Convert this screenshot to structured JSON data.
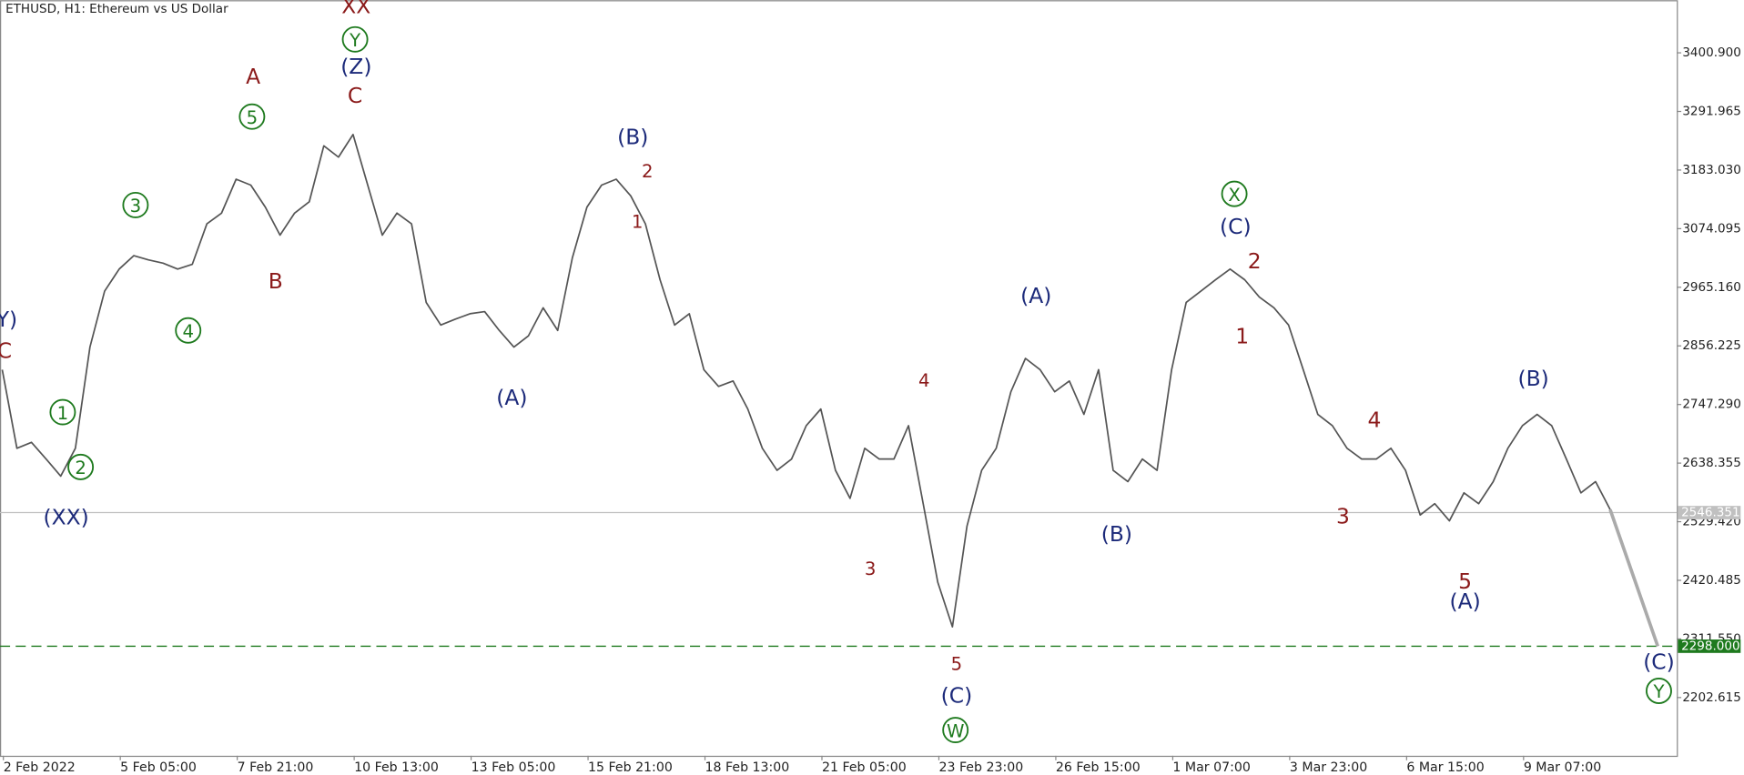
{
  "chart_data": {
    "type": "line",
    "title": "ETHUSD, H1:  Ethereum vs US Dollar",
    "color": "#555555",
    "ylim": [
      2094.4,
      3498.7
    ],
    "yticks": [
      {
        "value": 3400.9,
        "label": "3400.900"
      },
      {
        "value": 3291.965,
        "label": "3291.965"
      },
      {
        "value": 3183.03,
        "label": "3183.030"
      },
      {
        "value": 3074.095,
        "label": "3074.095"
      },
      {
        "value": 2965.16,
        "label": "2965.160"
      },
      {
        "value": 2856.225,
        "label": "2856.225"
      },
      {
        "value": 2747.29,
        "label": "2747.290"
      },
      {
        "value": 2638.355,
        "label": "2638.355"
      },
      {
        "value": 2529.42,
        "label": "2529.420"
      },
      {
        "value": 2420.485,
        "label": "2420.485"
      },
      {
        "value": 2311.55,
        "label": "2311.550"
      },
      {
        "value": 2202.615,
        "label": "2202.615"
      }
    ],
    "xticks": [
      "2 Feb 2022",
      "5 Feb 05:00",
      "7 Feb 21:00",
      "10 Feb 13:00",
      "13 Feb 05:00",
      "15 Feb 21:00",
      "18 Feb 13:00",
      "21 Feb 05:00",
      "23 Feb 23:00",
      "26 Feb 15:00",
      "1 Mar 07:00",
      "3 Mar 23:00",
      "6 Mar 15:00",
      "9 Mar 07:00"
    ],
    "values": [
      2812,
      2666,
      2677,
      2646,
      2614,
      2666,
      2854,
      2958,
      2999,
      3024,
      3016,
      3010,
      2999,
      3008,
      3083,
      3103,
      3166,
      3155,
      3114,
      3062,
      3103,
      3124,
      3228,
      3207,
      3249,
      3155,
      3062,
      3103,
      3083,
      2937,
      2895,
      2906,
      2916,
      2920,
      2885,
      2854,
      2875,
      2927,
      2885,
      3020,
      3114,
      3155,
      3166,
      3135,
      3083,
      2979,
      2895,
      2916,
      2812,
      2781,
      2791,
      2739,
      2666,
      2625,
      2646,
      2708,
      2739,
      2625,
      2573,
      2666,
      2646,
      2646,
      2708,
      2563,
      2417,
      2334,
      2521,
      2625,
      2666,
      2771,
      2833,
      2812,
      2771,
      2791,
      2729,
      2812,
      2625,
      2604,
      2646,
      2625,
      2812,
      2937,
      2958,
      2979,
      2999,
      2979,
      2947,
      2927,
      2895,
      2812,
      2729,
      2708,
      2666,
      2646,
      2646,
      2666,
      2625,
      2542,
      2563,
      2531,
      2583,
      2563,
      2604,
      2666,
      2708,
      2729,
      2708,
      2646,
      2583,
      2604,
      2552
    ],
    "current_price": {
      "value": 2546.351,
      "label": "2546.351",
      "color": "#c0c0c0"
    },
    "target": {
      "value": 2298.0,
      "label": "2298.000",
      "color": "#1e7a1e"
    },
    "annotations": [
      {
        "text": "XX",
        "color": "#8b1a1a",
        "circled": false
      },
      {
        "text": "Y",
        "color": "#1e7a1e",
        "circled": true
      },
      {
        "text": "(Z)",
        "color": "#1c2a7a",
        "circled": false
      },
      {
        "text": "C",
        "color": "#8b1a1a",
        "circled": false
      },
      {
        "text": "A",
        "color": "#8b1a1a",
        "circled": false
      },
      {
        "text": "5",
        "color": "#1e7a1e",
        "circled": true
      },
      {
        "text": "3",
        "color": "#1e7a1e",
        "circled": true
      },
      {
        "text": "4",
        "color": "#1e7a1e",
        "circled": true
      },
      {
        "text": "B",
        "color": "#8b1a1a",
        "circled": false
      },
      {
        "text": "1",
        "color": "#1e7a1e",
        "circled": true
      },
      {
        "text": "2",
        "color": "#1e7a1e",
        "circled": true
      },
      {
        "text": "(XX)",
        "color": "#1c2a7a",
        "circled": false
      },
      {
        "text": "Y)",
        "color": "#1c2a7a",
        "circled": false
      },
      {
        "text": "C",
        "color": "#8b1a1a",
        "circled": false
      },
      {
        "text": "(B)",
        "color": "#1c2a7a",
        "circled": false
      },
      {
        "text": "2",
        "color": "#8b1a1a",
        "circled": false
      },
      {
        "text": "1",
        "color": "#8b1a1a",
        "circled": false
      },
      {
        "text": "(A)",
        "color": "#1c2a7a",
        "circled": false
      },
      {
        "text": "4",
        "color": "#8b1a1a",
        "circled": false
      },
      {
        "text": "3",
        "color": "#8b1a1a",
        "circled": false
      },
      {
        "text": "5",
        "color": "#8b1a1a",
        "circled": false
      },
      {
        "text": "(C)",
        "color": "#1c2a7a",
        "circled": false
      },
      {
        "text": "W",
        "color": "#1e7a1e",
        "circled": true
      },
      {
        "text": "(A)",
        "color": "#1c2a7a",
        "circled": false
      },
      {
        "text": "(B)",
        "color": "#1c2a7a",
        "circled": false
      },
      {
        "text": "X",
        "color": "#1e7a1e",
        "circled": true
      },
      {
        "text": "(C)",
        "color": "#1c2a7a",
        "circled": false
      },
      {
        "text": "2",
        "color": "#8b1a1a",
        "circled": false
      },
      {
        "text": "1",
        "color": "#8b1a1a",
        "circled": false
      },
      {
        "text": "4",
        "color": "#8b1a1a",
        "circled": false
      },
      {
        "text": "3",
        "color": "#8b1a1a",
        "circled": false
      },
      {
        "text": "5",
        "color": "#8b1a1a",
        "circled": false
      },
      {
        "text": "(A)",
        "color": "#1c2a7a",
        "circled": false
      },
      {
        "text": "(B)",
        "color": "#1c2a7a",
        "circled": false
      },
      {
        "text": "(C)",
        "color": "#1c2a7a",
        "circled": false
      },
      {
        "text": "Y",
        "color": "#1e7a1e",
        "circled": true
      }
    ]
  }
}
